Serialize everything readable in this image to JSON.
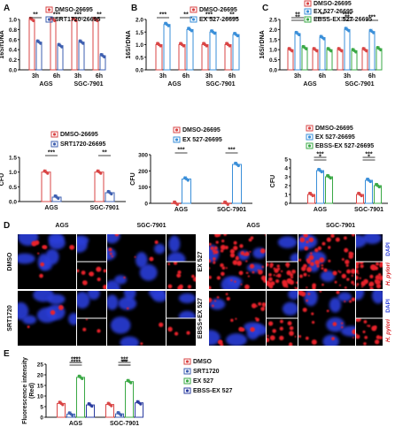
{
  "figure": {
    "background": "#ffffff"
  },
  "chart_data": [
    {
      "id": "A-top",
      "panel": "A",
      "type": "bar",
      "ylabel": "16S/rDNA",
      "ylim": [
        0,
        1.0
      ],
      "yticks": [
        "0.0",
        "0.2",
        "0.4",
        "0.6",
        "0.8",
        "1.0"
      ],
      "groups": [
        "AGS",
        "SGC-7901"
      ],
      "categories": [
        "3h",
        "6h",
        "3h",
        "6h"
      ],
      "legend": [
        "DMSO-26695",
        "SRT1720-26695"
      ],
      "colors": [
        "#d94545",
        "#3e5fb0"
      ],
      "series": [
        {
          "name": "DMSO-26695",
          "values": [
            1.0,
            1.0,
            1.0,
            1.0
          ]
        },
        {
          "name": "SRT1720-26695",
          "values": [
            0.55,
            0.48,
            0.55,
            0.28
          ]
        }
      ],
      "sig": [
        "**",
        "***",
        "***",
        "**"
      ]
    },
    {
      "id": "A-bottom",
      "panel": "",
      "type": "bar",
      "ylabel": "CFU",
      "ylim": [
        0,
        1.5
      ],
      "yticks": [
        "0.0",
        "0.5",
        "1.0",
        "1.5"
      ],
      "categories": [
        "AGS",
        "SGC-7901"
      ],
      "legend": [
        "DMSO-26695",
        "SRT1720-26695"
      ],
      "colors": [
        "#d94545",
        "#3e5fb0"
      ],
      "series": [
        {
          "name": "DMSO-26695",
          "values": [
            1.0,
            1.0
          ]
        },
        {
          "name": "SRT1720-26695",
          "values": [
            0.15,
            0.3
          ]
        }
      ],
      "sig": [
        "***",
        "**"
      ]
    },
    {
      "id": "B-top",
      "panel": "B",
      "type": "bar",
      "ylabel": "16S/rDNA",
      "ylim": [
        0,
        2.0
      ],
      "yticks": [
        "0.0",
        "0.5",
        "1.0",
        "1.5",
        "2.0"
      ],
      "groups": [
        "AGS",
        "SGC-7901"
      ],
      "categories": [
        "3h",
        "6h",
        "3h",
        "6h"
      ],
      "legend": [
        "DMSO-26695",
        "EX 527-26695"
      ],
      "colors": [
        "#d94545",
        "#3a8fd9"
      ],
      "series": [
        {
          "name": "DMSO-26695",
          "values": [
            1.0,
            1.0,
            1.0,
            1.0
          ]
        },
        {
          "name": "EX 527-26695",
          "values": [
            1.8,
            1.6,
            1.5,
            1.4
          ]
        }
      ],
      "sig": [
        "***",
        "**",
        "***",
        "**"
      ]
    },
    {
      "id": "B-bottom",
      "panel": "",
      "type": "bar",
      "ylabel": "CFU",
      "ylim": [
        0,
        300
      ],
      "yticks": [
        "0",
        "100",
        "200",
        "300"
      ],
      "categories": [
        "AGS",
        "SGC-7901"
      ],
      "legend": [
        "DMSO-26695",
        "EX 527-26695"
      ],
      "colors": [
        "#d94545",
        "#3a8fd9"
      ],
      "series": [
        {
          "name": "DMSO-26695",
          "values": [
            1.0,
            1.0
          ]
        },
        {
          "name": "EX 527-26695",
          "values": [
            150,
            240
          ]
        }
      ],
      "sig": [
        "***",
        "***"
      ]
    },
    {
      "id": "C-top",
      "panel": "C",
      "type": "bar",
      "ylabel": "16S/rDNA",
      "ylim": [
        0,
        2.5
      ],
      "yticks": [
        "0.0",
        "0.5",
        "1.0",
        "1.5",
        "2.0",
        "2.5"
      ],
      "groups": [
        "AGS",
        "SGC-7901"
      ],
      "categories": [
        "3h",
        "6h",
        "3h",
        "6h"
      ],
      "legend": [
        "DMSO-26695",
        "EX 527-26695",
        "EBSS-EX 527-26695"
      ],
      "colors": [
        "#d94545",
        "#3a8fd9",
        "#3aa845"
      ],
      "series": [
        {
          "name": "DMSO-26695",
          "values": [
            1.0,
            1.0,
            1.0,
            1.0
          ]
        },
        {
          "name": "EX 527-26695",
          "values": [
            1.8,
            1.6,
            2.0,
            1.9
          ]
        },
        {
          "name": "EBSS-EX 527-26695",
          "values": [
            1.1,
            1.0,
            0.95,
            1.05
          ]
        }
      ],
      "sig": [
        "**",
        "**",
        "**",
        "**",
        "****",
        "***"
      ]
    },
    {
      "id": "C-bottom",
      "panel": "",
      "type": "bar",
      "ylabel": "CFU",
      "ylim": [
        0,
        5
      ],
      "yticks": [
        "0",
        "1",
        "2",
        "3",
        "4",
        "5"
      ],
      "categories": [
        "AGS",
        "SGC-7901"
      ],
      "legend": [
        "DMSO-26695",
        "EX 527-26695",
        "EBSS-EX 527-26695"
      ],
      "colors": [
        "#d94545",
        "#3a8fd9",
        "#3aa845"
      ],
      "series": [
        {
          "name": "DMSO-26695",
          "values": [
            1.0,
            1.0
          ]
        },
        {
          "name": "EX 527-26695",
          "values": [
            3.7,
            2.6
          ]
        },
        {
          "name": "EBSS-EX 527-26695",
          "values": [
            3.0,
            2.0
          ]
        }
      ],
      "sig": [
        "***",
        "*",
        "***",
        "*"
      ]
    },
    {
      "id": "E",
      "panel": "E",
      "type": "bar",
      "ylabel": "Fluorescence intensity\n(Red)",
      "ylim": [
        0,
        25
      ],
      "yticks": [
        "0",
        "5",
        "10",
        "15",
        "20",
        "25"
      ],
      "categories": [
        "AGS",
        "SGC-7901"
      ],
      "legend": [
        "DMSO",
        "SRT1720",
        "EX 527",
        "EBSS-EX 527"
      ],
      "colors": [
        "#d94545",
        "#3e5fb0",
        "#3aa845",
        "#2b3ca0"
      ],
      "series": [
        {
          "name": "DMSO",
          "values": [
            6.5,
            6.0
          ]
        },
        {
          "name": "SRT1720",
          "values": [
            1.5,
            1.6
          ]
        },
        {
          "name": "EX 527",
          "values": [
            18.8,
            16.8
          ]
        },
        {
          "name": "EBSS-EX 527",
          "values": [
            5.8,
            6.8
          ]
        }
      ],
      "sig": [
        "**",
        "****",
        "****",
        "**",
        "***",
        "***"
      ]
    }
  ],
  "micro": {
    "panel": "D",
    "left_groups": [
      "AGS",
      "SGC-7901"
    ],
    "right_groups": [
      "AGS",
      "SGC-7901"
    ],
    "left_rows": [
      "DMSO",
      "SRT1720"
    ],
    "right_rows": [
      "EX 527",
      "EBSS+EX 527"
    ],
    "channel_dapi": "DAPI",
    "channel_hp": "H. pylori",
    "colors": {
      "nucleus": "#2c3ed8",
      "bacteria": "#e8202a",
      "dapi_text": "#2c3ed8",
      "hp_text": "#d8151b"
    }
  }
}
